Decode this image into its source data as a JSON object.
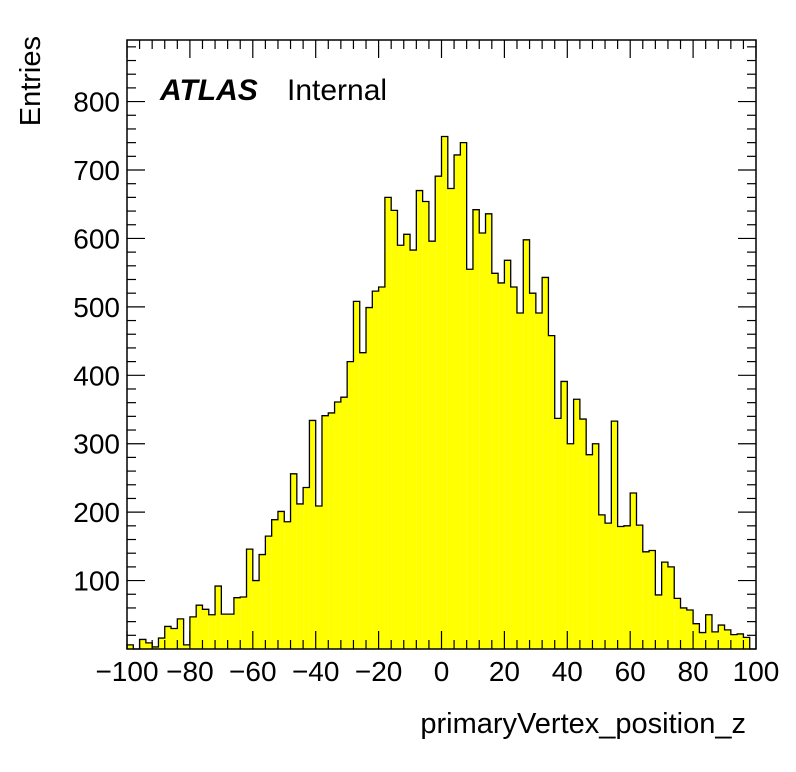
{
  "chart_data": {
    "type": "bar",
    "style": "histogram",
    "fill_color": "#ffff00",
    "line_color": "#000000",
    "bin_width": 2,
    "x_range": [
      -100,
      100
    ],
    "ylim": [
      0,
      890
    ],
    "xlabel": "primaryVertex_position_z",
    "ylabel": "Entries",
    "x_ticks": [
      "−100",
      "−80",
      "−60",
      "−40",
      "−20",
      "0",
      "20",
      "40",
      "60",
      "80",
      "100"
    ],
    "y_ticks": [
      "100",
      "200",
      "300",
      "400",
      "500",
      "600",
      "700",
      "800"
    ],
    "grid": false,
    "legend": "none",
    "annotation": {
      "experiment": "ATLAS",
      "status": "Internal"
    },
    "values": [
      6,
      0,
      14,
      9,
      3,
      16,
      33,
      30,
      44,
      6,
      47,
      64,
      58,
      50,
      92,
      51,
      51,
      75,
      76,
      146,
      100,
      138,
      165,
      189,
      201,
      186,
      256,
      212,
      236,
      334,
      209,
      341,
      345,
      361,
      368,
      420,
      508,
      433,
      499,
      523,
      529,
      660,
      641,
      590,
      606,
      583,
      670,
      654,
      596,
      691,
      749,
      673,
      722,
      740,
      555,
      642,
      608,
      636,
      549,
      535,
      568,
      529,
      491,
      598,
      520,
      491,
      543,
      458,
      337,
      391,
      300,
      365,
      336,
      284,
      300,
      196,
      184,
      333,
      179,
      180,
      228,
      181,
      142,
      144,
      79,
      127,
      120,
      74,
      60,
      57,
      37,
      24,
      50,
      25,
      35,
      28,
      21,
      22,
      17,
      0
    ]
  }
}
